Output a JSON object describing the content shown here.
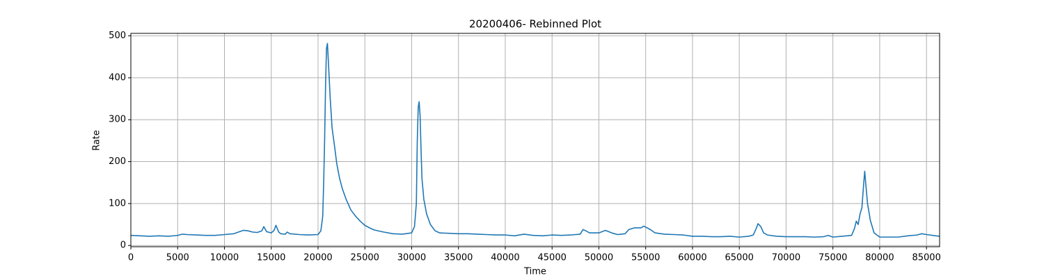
{
  "chart_data": {
    "type": "line",
    "title": "20200406- Rebinned Plot",
    "x_label": "Time",
    "y_label": "Rate",
    "x": [
      0,
      1000,
      2000,
      3000,
      4000,
      5000,
      5500,
      6000,
      7000,
      8000,
      9000,
      10000,
      11000,
      11500,
      12000,
      12500,
      13000,
      13500,
      14000,
      14200,
      14500,
      15000,
      15300,
      15500,
      15800,
      16000,
      16500,
      16700,
      17000,
      18000,
      19000,
      20000,
      20300,
      20500,
      20600,
      20700,
      20800,
      20900,
      21000,
      21100,
      21300,
      21500,
      21800,
      22000,
      22300,
      22600,
      23000,
      23500,
      24000,
      24500,
      25000,
      25500,
      26000,
      27000,
      28000,
      29000,
      30000,
      30300,
      30500,
      30600,
      30700,
      30800,
      30900,
      31000,
      31100,
      31300,
      31600,
      32000,
      32500,
      33000,
      34000,
      35000,
      36000,
      37000,
      38000,
      39000,
      40000,
      41000,
      42000,
      43000,
      44000,
      45000,
      46000,
      47000,
      48000,
      48300,
      48600,
      49000,
      50000,
      50700,
      51500,
      52000,
      52800,
      53200,
      53800,
      54500,
      54800,
      55500,
      56000,
      57000,
      58000,
      59000,
      60000,
      61000,
      62000,
      63000,
      64000,
      65000,
      66000,
      66500,
      66800,
      67000,
      67300,
      67600,
      68000,
      69000,
      70000,
      71000,
      72000,
      73000,
      74000,
      74500,
      75000,
      76000,
      77000,
      77300,
      77500,
      77700,
      77900,
      78100,
      78300,
      78400,
      78500,
      78700,
      79000,
      79400,
      80000,
      81000,
      82000,
      83000,
      84000,
      84500,
      85000,
      86000,
      86400
    ],
    "series": [
      {
        "name": "Rate",
        "color": "#1f77b4",
        "values": [
          24,
          23,
          22,
          23,
          22,
          24,
          27,
          26,
          25,
          24,
          24,
          26,
          28,
          32,
          36,
          35,
          32,
          31,
          35,
          45,
          33,
          30,
          36,
          48,
          32,
          28,
          27,
          32,
          28,
          26,
          25,
          26,
          35,
          70,
          150,
          250,
          380,
          470,
          482,
          440,
          350,
          280,
          230,
          195,
          160,
          135,
          110,
          85,
          70,
          58,
          48,
          42,
          37,
          32,
          28,
          27,
          30,
          45,
          100,
          250,
          330,
          343,
          310,
          230,
          160,
          110,
          75,
          50,
          35,
          30,
          29,
          28,
          28,
          27,
          26,
          25,
          25,
          23,
          27,
          24,
          23,
          25,
          24,
          25,
          27,
          38,
          35,
          30,
          30,
          36,
          29,
          26,
          28,
          38,
          42,
          42,
          46,
          38,
          30,
          27,
          26,
          25,
          22,
          22,
          21,
          21,
          22,
          20,
          22,
          25,
          40,
          52,
          45,
          30,
          25,
          22,
          21,
          21,
          21,
          20,
          21,
          24,
          20,
          22,
          24,
          40,
          58,
          50,
          75,
          90,
          150,
          177,
          150,
          100,
          60,
          30,
          20,
          20,
          20,
          23,
          25,
          28,
          26,
          23,
          22
        ]
      }
    ],
    "xlim": [
      0,
      86400
    ],
    "ylim": [
      -3,
      506
    ],
    "xticks": [
      0,
      5000,
      10000,
      15000,
      20000,
      25000,
      30000,
      35000,
      40000,
      45000,
      50000,
      55000,
      60000,
      65000,
      70000,
      75000,
      80000,
      85000
    ],
    "yticks": [
      0,
      100,
      200,
      300,
      400,
      500
    ],
    "grid": true
  }
}
